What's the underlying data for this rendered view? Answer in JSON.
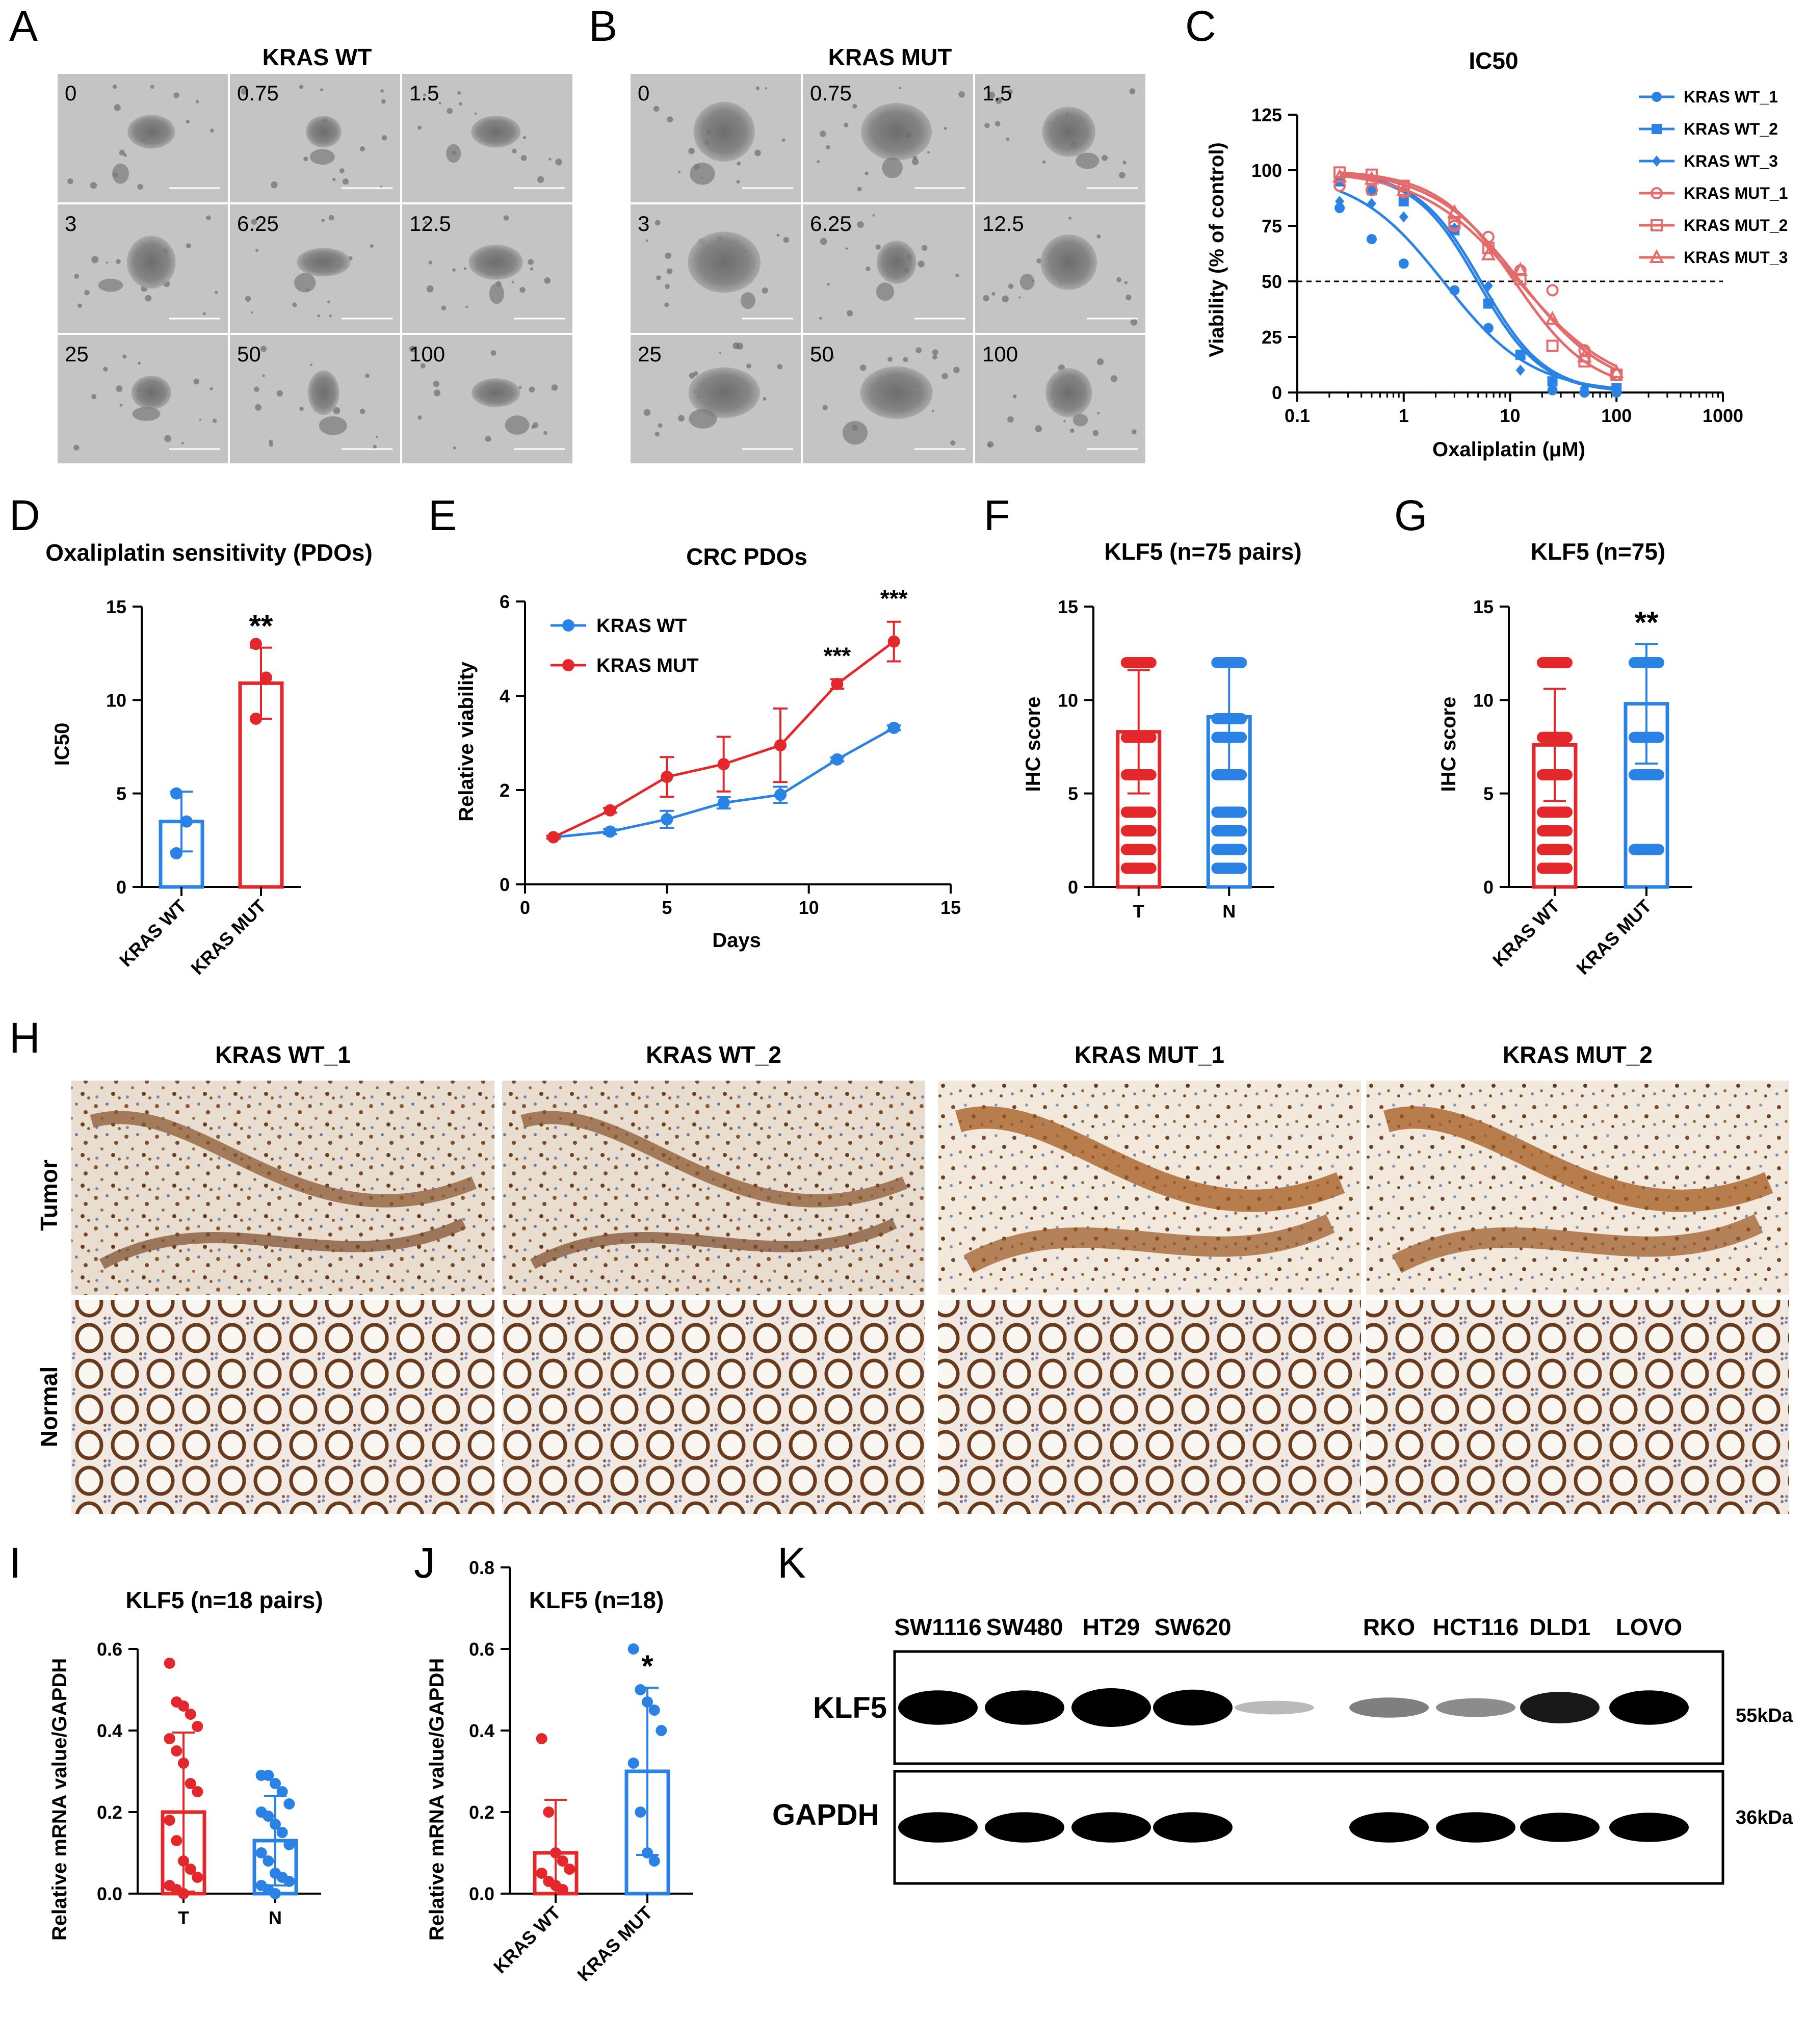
{
  "panel_letters": [
    "A",
    "B",
    "C",
    "D",
    "E",
    "F",
    "G",
    "H",
    "I",
    "J",
    "K"
  ],
  "organoids": {
    "concentrations": [
      "0",
      "0.75",
      "1.5",
      "3",
      "6.25",
      "12.5",
      "25",
      "50",
      "100"
    ],
    "wt_title": "KRAS WT",
    "mut_title": "KRAS MUT"
  },
  "ihc": {
    "columns": [
      "KRAS WT_1",
      "KRAS WT_2",
      "KRAS MUT_1",
      "KRAS MUT_2"
    ],
    "rows": [
      "Tumor",
      "Normal"
    ]
  },
  "western": {
    "cell_lines": [
      "SW1116",
      "SW480",
      "HT29",
      "SW620",
      "RKO",
      "HCT116",
      "DLD1",
      "LOVO"
    ],
    "proteins": [
      "KLF5",
      "GAPDH"
    ],
    "sizes": [
      "55kDa",
      "36kDa"
    ],
    "klf5_band_strength": [
      0.85,
      0.85,
      1.0,
      0.9,
      0.12,
      0.35,
      0.3,
      0.75,
      0.85
    ],
    "gapdh_band_strength": [
      0.9,
      0.9,
      0.9,
      0.9,
      0.0,
      0.9,
      0.9,
      0.85,
      0.85
    ]
  },
  "colors": {
    "wt": "#2a82e4",
    "mut": "#e3272b",
    "mut_c": "#e46b6b"
  },
  "chart_data": [
    {
      "id": "C",
      "type": "scatter",
      "title": "IC50",
      "xlabel": "Oxaliplatin (μM)",
      "ylabel": "Viability (% of control)",
      "xscale": "log",
      "xlim": [
        0.1,
        1000
      ],
      "ylim": [
        0,
        125
      ],
      "xticks": [
        "0.1",
        "1",
        "10",
        "100",
        "1000"
      ],
      "yticks": [
        "0",
        "25",
        "50",
        "75",
        "100",
        "125"
      ],
      "reference_line": 50,
      "legend": "top-right",
      "series": [
        {
          "name": "KRAS WT_1",
          "marker": "circle",
          "x": [
            0.25,
            0.5,
            1,
            3,
            6.25,
            25,
            50,
            100
          ],
          "y": [
            83,
            69,
            58,
            46,
            29,
            1,
            0,
            0
          ]
        },
        {
          "name": "KRAS WT_2",
          "marker": "square",
          "x": [
            0.25,
            0.5,
            1,
            3,
            6.25,
            12.5,
            25,
            100
          ],
          "y": [
            95,
            91,
            86,
            73,
            40,
            17,
            5,
            2
          ]
        },
        {
          "name": "KRAS WT_3",
          "marker": "diamond",
          "x": [
            0.25,
            0.5,
            1,
            3,
            6.25,
            12.5,
            25,
            50,
            100
          ],
          "y": [
            86,
            85,
            79,
            74,
            48,
            10,
            5,
            2,
            1
          ]
        },
        {
          "name": "KRAS MUT_1",
          "marker": "circle-open",
          "x": [
            0.25,
            0.5,
            1,
            3,
            6.25,
            12.5,
            25,
            50,
            100
          ],
          "y": [
            93,
            91,
            90,
            75,
            70,
            55,
            46,
            19,
            8
          ]
        },
        {
          "name": "KRAS MUT_2",
          "marker": "square-open",
          "x": [
            0.25,
            0.5,
            1,
            3,
            6.25,
            12.5,
            25,
            50,
            100
          ],
          "y": [
            99,
            98,
            93,
            76,
            65,
            51,
            21,
            14,
            8
          ]
        },
        {
          "name": "KRAS MUT_3",
          "marker": "triangle-open",
          "x": [
            0.25,
            0.5,
            1,
            3,
            6.25,
            12.5,
            25,
            50,
            100
          ],
          "y": [
            97,
            96,
            91,
            81,
            62,
            55,
            33,
            16,
            9
          ]
        }
      ],
      "fits": [
        {
          "series": "KRAS WT_1",
          "ic50": 2.4,
          "hill": 1.05
        },
        {
          "series": "KRAS WT_2",
          "ic50": 5.0,
          "hill": 1.45
        },
        {
          "series": "KRAS WT_3",
          "ic50": 5.4,
          "hill": 1.45
        },
        {
          "series": "KRAS MUT_1",
          "ic50": 12.0,
          "hill": 0.95
        },
        {
          "series": "KRAS MUT_2",
          "ic50": 11.0,
          "hill": 1.2
        },
        {
          "series": "KRAS MUT_3",
          "ic50": 12.5,
          "hill": 1.05
        }
      ]
    },
    {
      "id": "D",
      "type": "bar",
      "title": "Oxaliplatin sensitivity (PDOs)",
      "ylabel": "IC50",
      "ylim": [
        0,
        15
      ],
      "yticks": [
        "0",
        "5",
        "10",
        "15"
      ],
      "categories": [
        "KRAS WT",
        "KRAS MUT"
      ],
      "values": [
        3.5,
        10.9
      ],
      "errors": [
        1.6,
        1.9
      ],
      "points": [
        [
          5.0,
          3.5,
          1.8
        ],
        [
          13.0,
          11.2,
          9.0
        ]
      ],
      "annotation": "**"
    },
    {
      "id": "E",
      "type": "line",
      "title": "CRC PDOs",
      "xlabel": "Days",
      "ylabel": "Relative viability",
      "xlim": [
        0,
        15
      ],
      "ylim": [
        0,
        6
      ],
      "xticks": [
        "0",
        "5",
        "10",
        "15"
      ],
      "yticks": [
        "0",
        "2",
        "4",
        "6"
      ],
      "legend": "top-left",
      "x": [
        1,
        3,
        5,
        7,
        9,
        11,
        13
      ],
      "series": [
        {
          "name": "KRAS WT",
          "values": [
            1.0,
            1.12,
            1.38,
            1.73,
            1.9,
            2.65,
            3.32
          ],
          "errors": [
            0.03,
            0.05,
            0.18,
            0.12,
            0.17,
            0.04,
            0.05
          ]
        },
        {
          "name": "KRAS MUT",
          "values": [
            1.0,
            1.57,
            2.28,
            2.55,
            2.95,
            4.25,
            5.15
          ],
          "errors": [
            0.03,
            0.05,
            0.42,
            0.58,
            0.78,
            0.1,
            0.42
          ]
        }
      ],
      "annotations": [
        {
          "x": 11,
          "text": "***"
        },
        {
          "x": 13,
          "text": "***"
        }
      ]
    },
    {
      "id": "F",
      "type": "bar",
      "title": "KLF5 (n=75 pairs)",
      "ylabel": "IHC score",
      "ylim": [
        0,
        15
      ],
      "yticks": [
        "0",
        "5",
        "10",
        "15"
      ],
      "categories": [
        "T",
        "N"
      ],
      "values": [
        8.3,
        9.1
      ],
      "errors": [
        3.3,
        3.1
      ],
      "point_levels": [
        [
          12,
          8,
          6,
          4,
          3,
          2,
          1
        ],
        [
          12,
          9,
          8,
          6,
          4,
          3,
          2,
          1
        ]
      ]
    },
    {
      "id": "G",
      "type": "bar",
      "title": "KLF5 (n=75)",
      "ylabel": "IHC score",
      "ylim": [
        0,
        15
      ],
      "yticks": [
        "0",
        "5",
        "10",
        "15"
      ],
      "categories": [
        "KRAS WT",
        "KRAS MUT"
      ],
      "values": [
        7.6,
        9.8
      ],
      "errors": [
        3.0,
        3.2
      ],
      "point_levels": [
        [
          12,
          8,
          6,
          4,
          3,
          2,
          1
        ],
        [
          12,
          8,
          6,
          2
        ]
      ],
      "annotation": "**"
    },
    {
      "id": "I",
      "type": "bar",
      "title": "KLF5 (n=18 pairs)",
      "ylabel": "Relative mRNA value/GAPDH",
      "ylim": [
        0,
        0.6
      ],
      "yticks": [
        "0.0",
        "0.2",
        "0.4",
        "0.6"
      ],
      "categories": [
        "T",
        "N"
      ],
      "values": [
        0.2,
        0.13
      ],
      "errors": [
        0.195,
        0.11
      ],
      "points": [
        [
          0.565,
          0.47,
          0.46,
          0.44,
          0.41,
          0.38,
          0.35,
          0.32,
          0.27,
          0.25,
          0.18,
          0.13,
          0.08,
          0.06,
          0.04,
          0.02,
          0.01,
          0.0
        ],
        [
          0.29,
          0.29,
          0.27,
          0.25,
          0.22,
          0.2,
          0.19,
          0.17,
          0.15,
          0.12,
          0.1,
          0.08,
          0.05,
          0.04,
          0.03,
          0.02,
          0.01,
          0.0
        ]
      ]
    },
    {
      "id": "J",
      "type": "bar",
      "title": "KLF5 (n=18)",
      "ylabel": "Relative mRNA value/GAPDH",
      "ylim": [
        0,
        0.8
      ],
      "yticks": [
        "0.0",
        "0.2",
        "0.4",
        "0.6",
        "0.8"
      ],
      "categories": [
        "KRAS WT",
        "KRAS MUT"
      ],
      "values": [
        0.1,
        0.3
      ],
      "errors": [
        0.13,
        0.205
      ],
      "points": [
        [
          0.38,
          0.2,
          0.1,
          0.08,
          0.06,
          0.05,
          0.03,
          0.02,
          0.01
        ],
        [
          0.6,
          0.5,
          0.47,
          0.45,
          0.4,
          0.32,
          0.2,
          0.1,
          0.08
        ]
      ],
      "annotation": "*"
    }
  ]
}
